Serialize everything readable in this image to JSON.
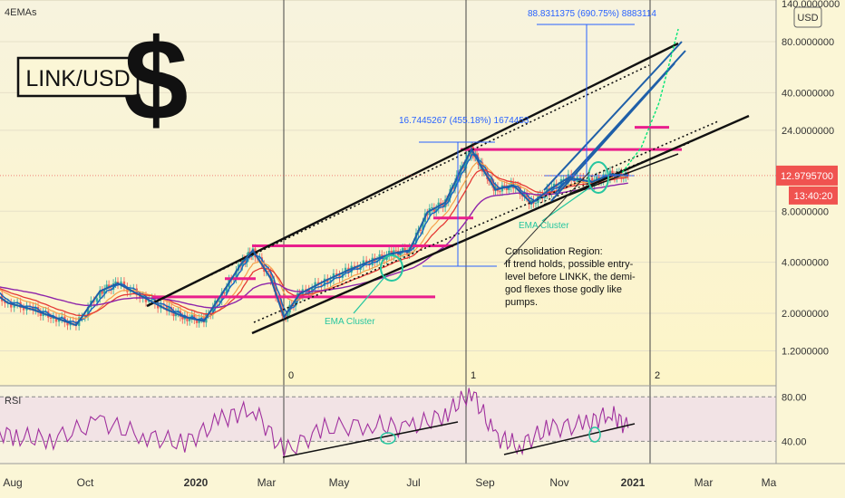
{
  "indicator_label": "4EMAs",
  "logo_text": "LINK/USD",
  "logo_symbol": "$",
  "currency_button": "USD",
  "price_badge": {
    "price": "12.9795700",
    "countdown": "13:40:20"
  },
  "colors": {
    "background": "#fbf6d6",
    "price_line": "#1f5fa8",
    "ema_fast": "#1565c0",
    "ema_red": "#e53935",
    "ema_orange": "#f5a04a",
    "ema_purple": "#8e24aa",
    "support_resistance": "#e91e8c",
    "annotation_blue": "#2962ff",
    "ema_cluster": "#26c6a0",
    "projection": "#00e676",
    "badge": "#f05350",
    "rsi": "#a0309e"
  },
  "annotations": {
    "measure_top": "88.8311375 (690.75%) 8883114",
    "measure_mid": "16.7445267 (455.18%) 1674453",
    "ema_cluster_1": "EMA Cluster",
    "ema_cluster_2": "EMA Cluster",
    "consolidation": [
      "Consolidation Region:",
      "If trend holds, possible entry-",
      "level before LINKK, the demi-",
      "god flexes those godly like",
      "pumps."
    ],
    "cycle_markers": [
      "0",
      "1",
      "2"
    ]
  },
  "rsi_panel": {
    "label": "RSI",
    "levels": [
      "80.00",
      "40.00"
    ]
  },
  "chart_data": {
    "type": "line",
    "xlabel": "",
    "ylabel": "",
    "y_scale": "log",
    "ylim": [
      0.9,
      140
    ],
    "x_tick_labels": [
      "Aug",
      "Oct",
      "2020",
      "Mar",
      "May",
      "Jul",
      "Sep",
      "Nov",
      "2021",
      "Mar",
      "Ma"
    ],
    "y_tick_labels": [
      "140.0000000",
      "80.0000000",
      "40.0000000",
      "24.0000000",
      "8.0000000",
      "4.0000000",
      "2.0000000",
      "1.2000000"
    ],
    "y_tick_values": [
      140,
      80,
      40,
      24,
      8,
      4,
      2,
      1.2
    ],
    "current_price": 12.97957,
    "series": [
      {
        "name": "",
        "x": [
          "2019-07-05",
          "2019-07-25",
          "2019-08-15",
          "2019-09-01",
          "2019-09-20",
          "2019-10-10",
          "2019-10-25",
          "2019-11-15",
          "2019-12-05",
          "2019-12-20",
          "2020-01-05",
          "2020-01-20",
          "2020-02-05",
          "2020-02-15",
          "2020-03-01",
          "2020-03-12",
          "2020-03-25",
          "2020-04-15",
          "2020-05-05",
          "2020-05-25",
          "2020-06-10",
          "2020-06-25",
          "2020-07-10",
          "2020-07-25",
          "2020-08-05",
          "2020-08-16",
          "2020-08-25",
          "2020-09-05",
          "2020-09-20",
          "2020-10-05",
          "2020-10-20",
          "2020-11-05",
          "2020-11-25",
          "2020-12-10",
          "2020-12-25"
        ],
        "y": [
          2.9,
          2.3,
          2.1,
          1.9,
          1.7,
          2.7,
          3.0,
          2.5,
          2.1,
          1.9,
          1.8,
          2.6,
          3.9,
          4.7,
          3.2,
          1.9,
          2.6,
          3.1,
          3.6,
          4.1,
          4.5,
          4.7,
          7.9,
          9.0,
          13.1,
          18.5,
          14.3,
          10.7,
          11.4,
          8.9,
          10.7,
          12.6,
          11.9,
          13.2,
          12.98
        ]
      },
      {
        "name": "",
        "x": [
          "2020-03-01",
          "2020-04-15",
          "2020-06-01",
          "2020-07-15",
          "2020-09-01",
          "2020-10-15",
          "2020-12-01",
          "2020-12-25"
        ],
        "y": [
          2.3,
          2.5,
          3.2,
          4.9,
          8.0,
          9.1,
          10.8,
          11.8
        ]
      },
      {
        "name": "",
        "x": [
          "2020-12-20",
          "2021-01-05",
          "2021-01-20",
          "2021-02-05"
        ],
        "y": [
          13.5,
          19.0,
          35.0,
          95.0
        ]
      }
    ],
    "horizontal_levels": [
      2.5,
      3.2,
      5.0,
      7.3,
      18.5,
      25.0
    ],
    "rsi": {
      "ylim": [
        20,
        90
      ],
      "levels": [
        80,
        40
      ],
      "x": [
        "2019-07-05",
        "2019-08-01",
        "2019-09-01",
        "2019-10-10",
        "2019-11-15",
        "2019-12-20",
        "2020-01-20",
        "2020-02-15",
        "2020-03-12",
        "2020-04-15",
        "2020-05-25",
        "2020-06-25",
        "2020-07-25",
        "2020-08-16",
        "2020-09-05",
        "2020-09-25",
        "2020-10-20",
        "2020-11-20",
        "2020-12-10",
        "2020-12-25"
      ],
      "y": [
        52,
        44,
        42,
        58,
        45,
        38,
        60,
        70,
        30,
        52,
        55,
        52,
        64,
        85,
        44,
        36,
        52,
        55,
        66,
        52
      ]
    }
  }
}
